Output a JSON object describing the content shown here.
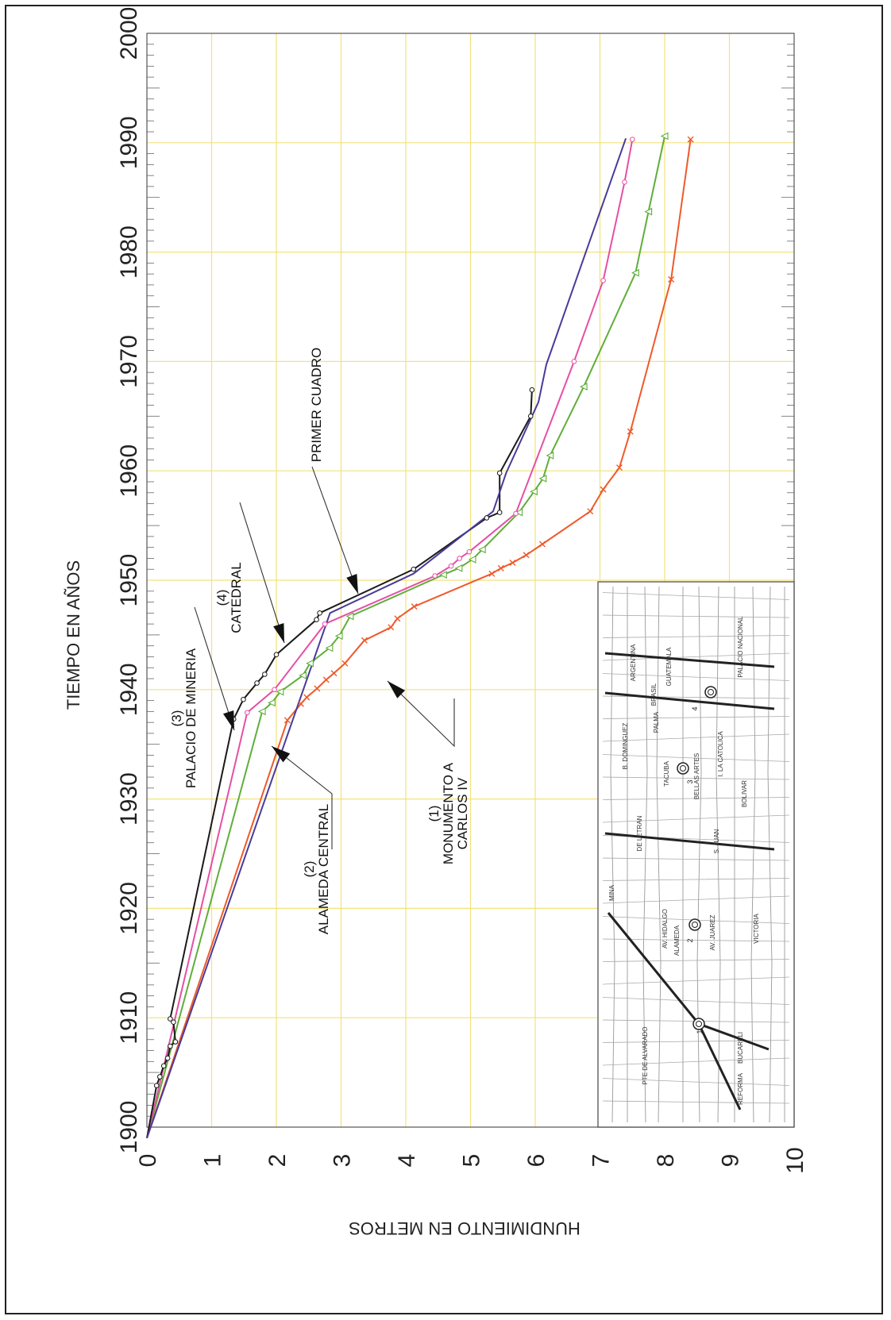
{
  "chart_data": {
    "type": "line",
    "title": "",
    "xlabel": "TIEMPO EN AÑOS",
    "ylabel": "HUNDIMIENTO EN METROS",
    "xlim": [
      1900,
      2000
    ],
    "ylim": [
      0,
      10
    ],
    "x_ticks": [
      "1900",
      "1910",
      "1920",
      "1930",
      "1940",
      "1950",
      "1960",
      "1970",
      "1980",
      "1990",
      "2000"
    ],
    "y_ticks": [
      "0",
      "1",
      "2",
      "3",
      "4",
      "5",
      "6",
      "7",
      "8",
      "9",
      "10"
    ],
    "grid": true,
    "series": [
      {
        "name": "(1) MONUMENTO A CARLOS IV",
        "color": "#ee5a2a",
        "marker": "x",
        "x": [
          1899,
          1937.2,
          1938.7,
          1939.3,
          1940.1,
          1940.9,
          1941.5,
          1942.4,
          1944.5,
          1945.7,
          1946.5,
          1947.6,
          1950.6,
          1951.1,
          1951.6,
          1952.3,
          1953.3,
          1956.3,
          1958.3,
          1960.3,
          1963.6,
          1977.5,
          1990.3
        ],
        "y": [
          0.0,
          2.17,
          2.38,
          2.47,
          2.63,
          2.77,
          2.89,
          3.06,
          3.36,
          3.77,
          3.87,
          4.13,
          5.33,
          5.47,
          5.65,
          5.86,
          6.11,
          6.85,
          7.05,
          7.3,
          7.47,
          8.1,
          8.4
        ]
      },
      {
        "name": "(2) ALAMEDA CENTRAL",
        "color": "#5fae3a",
        "marker": "triangle",
        "x": [
          1899,
          1938.0,
          1938.8,
          1939.8,
          1941.3,
          1942.4,
          1943.8,
          1944.9,
          1946.7,
          1950.5,
          1951.1,
          1951.9,
          1952.8,
          1956.2,
          1958.1,
          1959.3,
          1961.4,
          1967.7,
          1978.1,
          1983.7,
          1990.6
        ],
        "y": [
          0.0,
          1.78,
          1.93,
          2.06,
          2.41,
          2.52,
          2.82,
          2.97,
          3.14,
          4.58,
          4.82,
          5.03,
          5.18,
          5.75,
          5.98,
          6.12,
          6.23,
          6.75,
          7.55,
          7.75,
          8.0
        ]
      },
      {
        "name": "(3) PALACIO DE MINERIA",
        "color": "#e54fa5",
        "marker": "circle",
        "x": [
          1899,
          1937.9,
          1940.0,
          1946.0,
          1950.4,
          1951.3,
          1952.0,
          1952.6,
          1956.1,
          1970.0,
          1977.4,
          1986.4,
          1990.3
        ],
        "y": [
          0.0,
          1.55,
          1.97,
          2.75,
          4.45,
          4.7,
          4.83,
          4.98,
          5.7,
          6.6,
          7.05,
          7.38,
          7.5
        ]
      },
      {
        "name": "(4) CATEDRAL",
        "color": "#1a1a1a",
        "marker": "circle",
        "x": [
          1899,
          1903.8,
          1904.6,
          1905.6,
          1906.3,
          1907.4,
          1907.8,
          1909.6,
          1909.9,
          1937.3,
          1939.1,
          1940.6,
          1941.4,
          1943.2,
          1946.4,
          1947.0,
          1951.0,
          1955.7,
          1956.2,
          1959.8,
          1965.0,
          1967.4
        ],
        "y": [
          0.0,
          0.15,
          0.2,
          0.26,
          0.32,
          0.36,
          0.44,
          0.41,
          0.36,
          1.34,
          1.49,
          1.7,
          1.82,
          2.0,
          2.62,
          2.67,
          4.12,
          5.25,
          5.45,
          5.45,
          5.93,
          5.95
        ]
      },
      {
        "name": "PRIMER CUADRO",
        "color": "#4a3a9a",
        "marker": "none",
        "x": [
          1899,
          1947.0,
          1950.6,
          1956.3,
          1959.8,
          1966.3,
          1969.7,
          1990.4
        ],
        "y": [
          0.0,
          2.83,
          4.12,
          5.35,
          5.55,
          6.05,
          6.17,
          7.4
        ]
      }
    ],
    "annotations": [
      {
        "lines": [
          "(1)",
          "MONUMENTO A",
          "CARLOS IV"
        ]
      },
      {
        "lines": [
          "(2)",
          "ALAMEDA CENTRAL"
        ]
      },
      {
        "lines": [
          "(3)",
          "PALACIO DE MINERIA"
        ]
      },
      {
        "lines": [
          "(4)",
          "CATEDRAL"
        ]
      },
      {
        "lines": [
          "PRIMER CUADRO"
        ]
      }
    ]
  },
  "inset_map": {
    "streets": [
      "MINA",
      "AV. HIDALGO",
      "ALAMEDA",
      "AV. JUAREZ",
      "VICTORIA",
      "DE LETRAN",
      "S. JUAN",
      "B. DOMINGUEZ",
      "TACUBA",
      "BELLAS ARTES",
      "BOLIVAR",
      "I. LA CATOLICA",
      "PALMA",
      "BRASIL",
      "ARGENTINA",
      "GUATEMALA",
      "PALACIO NACIONAL",
      "PTE DE ALVARADO",
      "BUCARELI",
      "REFORMA"
    ],
    "site_numbers": [
      "1",
      "2",
      "3",
      "4"
    ]
  }
}
